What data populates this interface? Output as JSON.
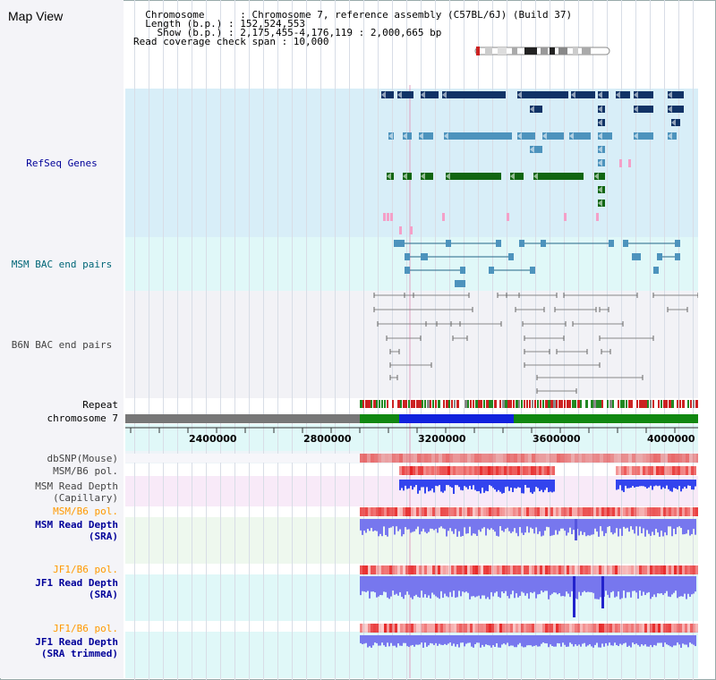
{
  "header": {
    "title": "Map View",
    "info_lines": [
      "  Chromosome      : Chromosome 7, reference assembly (C57BL/6J) (Build 37)",
      "  Length (b.p.) : 152,524,553",
      "    Show (b.p.) : 2,175,455-4,176,119 : 2,000,665 bp",
      "Read coverage check span : 10,000"
    ]
  },
  "tracks": {
    "refseq": "RefSeq Genes",
    "msm_bac": "MSM BAC end pairs",
    "b6n_bac": "B6N BAC end pairs",
    "repeat": "Repeat",
    "chromosome": "chromosome 7",
    "dbsnp": "dbSNP(Mouse)",
    "msm_b6_pol_1": "MSM/B6 pol.",
    "msm_read_depth_cap_1": "MSM Read Depth",
    "msm_read_depth_cap_2": "(Capillary)",
    "msm_b6_pol_2": "MSM/B6 pol.",
    "msm_read_depth_sra_1": "MSM Read Depth",
    "msm_read_depth_sra_2": "(SRA)",
    "jf1_b6_pol_1": "JF1/B6 pol.",
    "jf1_read_depth_sra_1": "JF1 Read Depth",
    "jf1_read_depth_sra_2": "(SRA)",
    "jf1_b6_pol_2": "JF1/B6 pol.",
    "jf1_read_depth_trim_1": "JF1 Read Depth",
    "jf1_read_depth_trim_2": "(SRA trimmed)"
  },
  "scale": {
    "ticks": [
      "2400000",
      "2800000",
      "3200000",
      "3600000",
      "4000000"
    ]
  },
  "colors": {
    "label_blue": "#000099",
    "label_teal": "#006677",
    "label_orange": "#ff9900",
    "label_gray": "#444444",
    "refseq_bg": "#d8eef8",
    "msm_bg": "#e0f8f8",
    "b6n_bg": "#f2f2f6",
    "gene_dark": "#113366",
    "gene_light": "#4d93bd",
    "gene_green": "#116611",
    "chrom_gray": "#777777",
    "chrom_green": "#118811",
    "chrom_blue": "#1122dd"
  }
}
